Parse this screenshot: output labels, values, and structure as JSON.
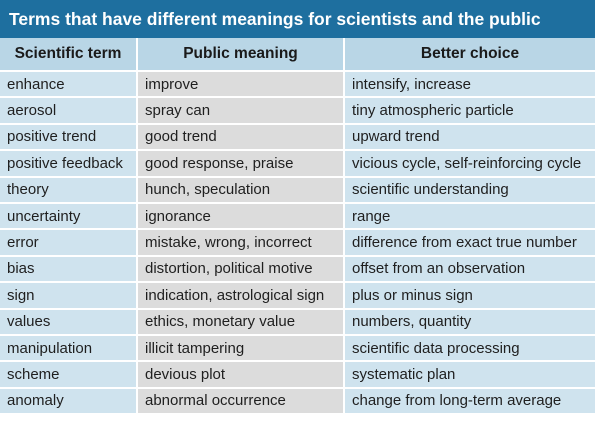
{
  "title": "Terms that have different meanings for scientists and the public",
  "headers": {
    "term": "Scientific term",
    "public": "Public meaning",
    "better": "Better choice"
  },
  "rows": [
    {
      "term": "enhance",
      "public": "improve",
      "better": "intensify, increase"
    },
    {
      "term": "aerosol",
      "public": "spray can",
      "better": "tiny atmospheric particle"
    },
    {
      "term": "positive trend",
      "public": "good trend",
      "better": "upward trend"
    },
    {
      "term": "positive feedback",
      "public": "good response, praise",
      "better": "vicious cycle, self-reinforcing cycle"
    },
    {
      "term": "theory",
      "public": "hunch, speculation",
      "better": "scientific understanding"
    },
    {
      "term": "uncertainty",
      "public": "ignorance",
      "better": "range"
    },
    {
      "term": "error",
      "public": "mistake, wrong, incorrect",
      "better": "difference from exact true number"
    },
    {
      "term": "bias",
      "public": "distortion, political motive",
      "better": "offset from an observation"
    },
    {
      "term": "sign",
      "public": "indication, astrological sign",
      "better": "plus or minus sign"
    },
    {
      "term": "values",
      "public": "ethics, monetary value",
      "better": "numbers, quantity"
    },
    {
      "term": "manipulation",
      "public": "illicit tampering",
      "better": "scientific data processing"
    },
    {
      "term": "scheme",
      "public": "devious plot",
      "better": "systematic plan"
    },
    {
      "term": "anomaly",
      "public": "abnormal occurrence",
      "better": "change from long-term average"
    }
  ]
}
